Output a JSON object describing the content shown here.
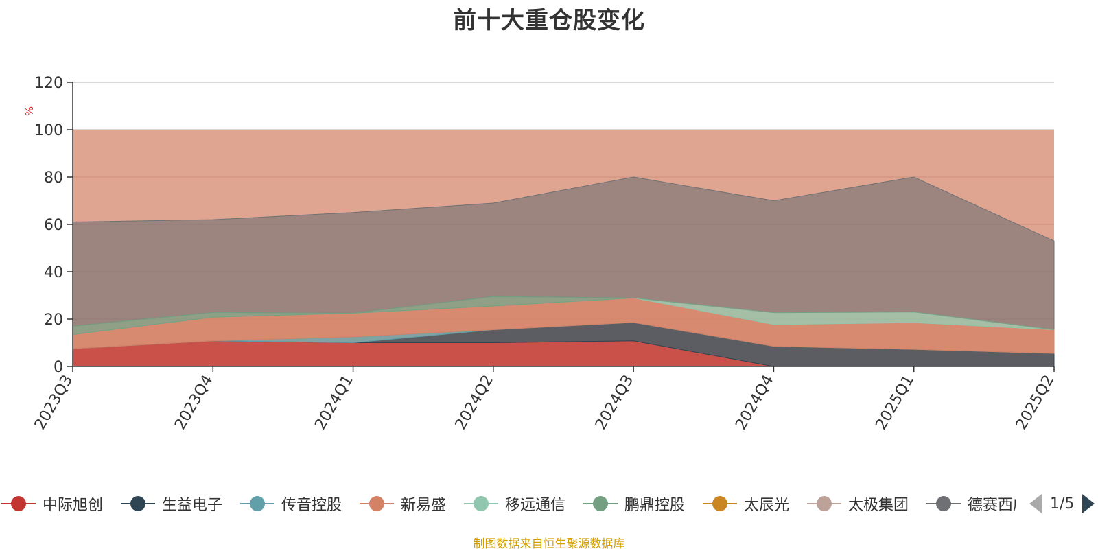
{
  "title": "前十大重仓股变化",
  "source_note": "制图数据来自恒生聚源数据库",
  "pager": {
    "text": "1/5"
  },
  "colors": [
    "#c23531",
    "#2f4554",
    "#61a0a8",
    "#d48265",
    "#91c7ae",
    "#749f83",
    "#ca8622",
    "#bda29a",
    "#6e7074",
    "#546570",
    "#c4ccd3"
  ],
  "legend": [
    "中际旭创",
    "生益电子",
    "传音控股",
    "新易盛",
    "移远通信",
    "鹏鼎控股",
    "太辰光",
    "太极集团",
    "德赛西威"
  ],
  "chart_data": {
    "type": "area",
    "stacked": true,
    "title": "前十大重仓股变化",
    "ylabel": "%",
    "ylim": [
      0,
      120
    ],
    "yticks": [
      0,
      20,
      40,
      60,
      80,
      100,
      120
    ],
    "x": [
      "2023Q3",
      "2023Q4",
      "2024Q1",
      "2024Q2",
      "2024Q3",
      "2024Q4",
      "2025Q1",
      "2025Q2"
    ],
    "grid": true,
    "legend_position": "bottom",
    "series": [
      {
        "name": "中际旭创",
        "values": [
          7.5,
          10.8,
          10.0,
          10.0,
          10.8,
          0,
          0,
          0
        ]
      },
      {
        "name": "生益电子",
        "values": [
          0,
          0,
          0,
          5.5,
          7.8,
          8.5,
          7.2,
          5.5
        ]
      },
      {
        "name": "传音控股",
        "values": [
          0,
          0,
          2.5,
          0,
          0,
          0,
          0,
          0
        ]
      },
      {
        "name": "新易盛",
        "values": [
          6.0,
          10.0,
          10.0,
          10.0,
          10.3,
          9.2,
          11.3,
          10.0
        ]
      },
      {
        "name": "移远通信",
        "values": [
          0,
          0,
          0,
          0,
          0,
          5.0,
          4.5,
          0
        ]
      },
      {
        "name": "鹏鼎控股",
        "values": [
          3.5,
          2.0,
          0,
          4.0,
          0,
          0,
          0,
          0
        ]
      }
    ]
  },
  "bands": [
    {
      "fill": 3,
      "bottoms": [
        13.5,
        20.8,
        22.5,
        25.5,
        29.2,
        18.0,
        18.5,
        15.5
      ],
      "tops": [
        13.5,
        20.8,
        22.5,
        25.5,
        29.2,
        18.0,
        18.5,
        15.5
      ]
    },
    {
      "fill": 3,
      "bottoms": [
        0,
        0,
        0,
        0,
        0,
        0,
        0,
        0
      ],
      "tops": [
        0,
        0,
        0,
        0,
        0,
        0,
        0,
        0
      ]
    }
  ]
}
